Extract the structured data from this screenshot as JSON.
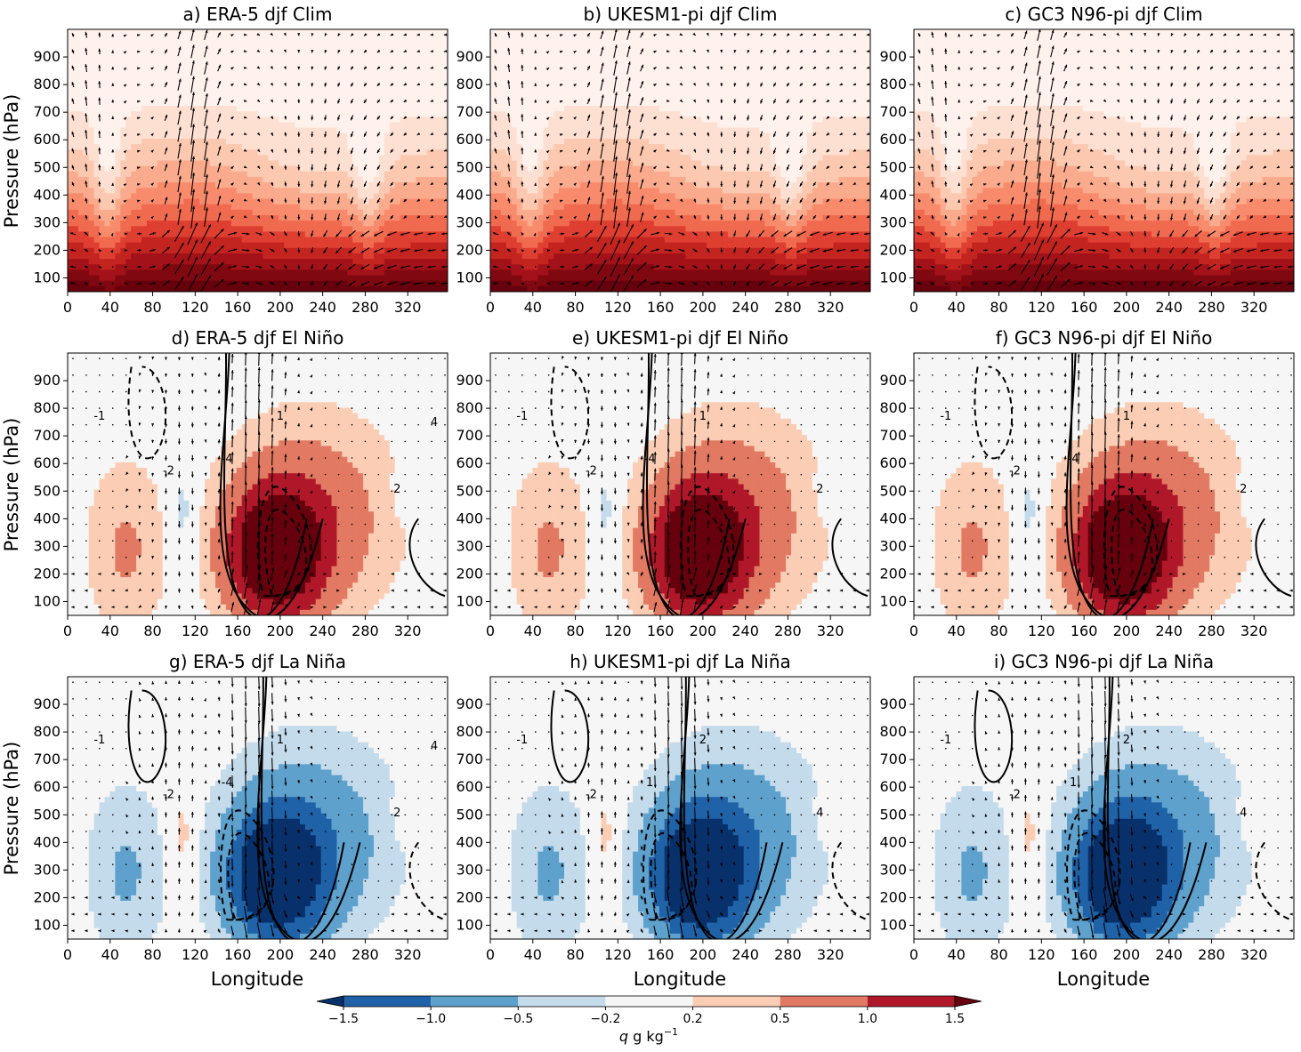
{
  "figure": {
    "colorbar": {
      "label_q": "q",
      "label_units": "g kg",
      "label_exponent": "−1",
      "boundaries": [
        -1.5,
        -1.0,
        -0.5,
        -0.2,
        0.2,
        0.5,
        1.0,
        1.5
      ],
      "tick_labels": [
        "−1.5",
        "−1.0",
        "−0.5",
        "−0.2",
        "0.2",
        "0.5",
        "1.0",
        "1.5"
      ],
      "colors": [
        "#08306b",
        "#1f62a8",
        "#5fa1cd",
        "#c4dbec",
        "#f6f6f6",
        "#fbcdb4",
        "#e27962",
        "#b0182a",
        "#67000d"
      ],
      "extend": "both"
    },
    "clim_colors": [
      "#fff1ec",
      "#fde0d2",
      "#fcc9b0",
      "#fbab8d",
      "#f98b6d",
      "#f06a4f",
      "#de3f31",
      "#c3241f",
      "#a31218",
      "#800810",
      "#67000d"
    ]
  },
  "axes": {
    "ylabel": "Pressure (hPa)",
    "xlabel": "Longitude",
    "x_ticks": [
      "0",
      "40",
      "80",
      "120",
      "160",
      "200",
      "240",
      "280",
      "320"
    ],
    "y_ticks": [
      "100",
      "200",
      "300",
      "400",
      "500",
      "600",
      "700",
      "800",
      "900"
    ],
    "x_range": [
      0,
      357.5
    ],
    "y_range": [
      1000,
      50
    ]
  },
  "chart_data": [
    {
      "type": "heatmap",
      "title": "a) ERA-5 djf Clim",
      "field": "climatology"
    },
    {
      "type": "heatmap",
      "title": "b) UKESM1-pi djf Clim",
      "field": "climatology"
    },
    {
      "type": "heatmap",
      "title": "c) GC3 N96-pi djf Clim",
      "field": "climatology"
    },
    {
      "type": "heatmap",
      "title": "d) ERA-5 djf El Niño",
      "field": "anomaly",
      "sign": 1,
      "contour_labels": [
        "-1",
        "-2",
        "-4",
        "1",
        "2",
        "4"
      ]
    },
    {
      "type": "heatmap",
      "title": "e) UKESM1-pi djf El Niño",
      "field": "anomaly",
      "sign": 1,
      "contour_labels": [
        "-1",
        "-2",
        "-4",
        "1",
        "2"
      ]
    },
    {
      "type": "heatmap",
      "title": "f) GC3 N96-pi djf El Niño",
      "field": "anomaly",
      "sign": 1,
      "contour_labels": [
        "-1",
        "-2",
        "-4",
        "1",
        "2"
      ]
    },
    {
      "type": "heatmap",
      "title": "g) ERA-5 djf La Niña",
      "field": "anomaly",
      "sign": -1,
      "contour_labels": [
        "-1",
        "-2",
        "-4",
        "1",
        "2",
        "4"
      ]
    },
    {
      "type": "heatmap",
      "title": "h) UKESM1-pi djf La Niña",
      "field": "anomaly",
      "sign": -1,
      "contour_labels": [
        "-1",
        "-2",
        "1",
        "2",
        "4"
      ]
    },
    {
      "type": "heatmap",
      "title": "i) GC3 N96-pi djf La Niña",
      "field": "anomaly",
      "sign": -1,
      "contour_labels": [
        "-1",
        "-2",
        "1",
        "2",
        "4"
      ]
    }
  ]
}
